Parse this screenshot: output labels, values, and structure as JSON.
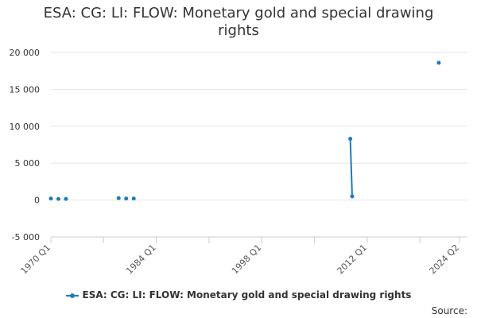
{
  "chart_data": {
    "type": "line",
    "title": "ESA: CG: LI: FLOW: Monetary gold and special drawing rights",
    "xlabel": "",
    "ylabel": "",
    "x_ticks": [
      "1970 Q1",
      "1984 Q1",
      "1998 Q1",
      "2012 Q1",
      "2024 Q2"
    ],
    "y_ticks": [
      20000,
      15000,
      10000,
      5000,
      0,
      -5000
    ],
    "y_tick_labels": [
      "20 000",
      "15 000",
      "10 000",
      "5 000",
      "0",
      "-5 000"
    ],
    "ylim": [
      -5000,
      20000
    ],
    "xlim": [
      1970.0,
      2024.25
    ],
    "grid": "horizontal",
    "legend_position": "bottom",
    "series": [
      {
        "name": "ESA: CG: LI: FLOW: Monetary gold and special drawing rights",
        "color": "#1f7cb8",
        "segments": [
          [
            {
              "x": 1970.0,
              "y": 200
            }
          ],
          [
            {
              "x": 1971.0,
              "y": 150
            }
          ],
          [
            {
              "x": 1972.0,
              "y": 150
            }
          ],
          [
            {
              "x": 1979.0,
              "y": 250
            }
          ],
          [
            {
              "x": 1980.0,
              "y": 200
            }
          ],
          [
            {
              "x": 1981.0,
              "y": 200
            }
          ],
          [
            {
              "x": 2009.75,
              "y": 8300
            },
            {
              "x": 2010.0,
              "y": 500
            }
          ],
          [
            {
              "x": 2021.5,
              "y": 18600
            }
          ]
        ]
      }
    ]
  },
  "legend": {
    "label": "ESA: CG: LI: FLOW: Monetary gold and special drawing rights"
  },
  "source": {
    "label": "Source:"
  }
}
